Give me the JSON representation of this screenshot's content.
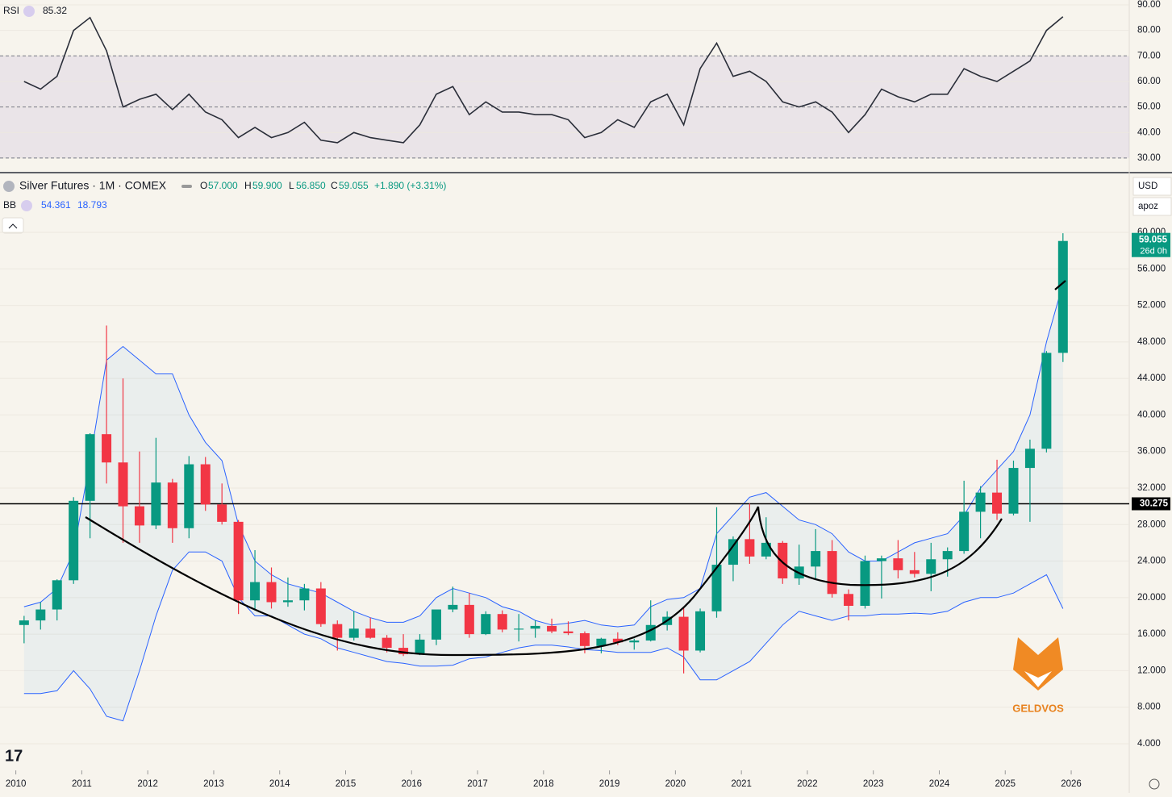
{
  "header": {
    "rsi_label": "RSI",
    "rsi_value": "85.32",
    "symbol": "Silver Futures · 1M · COMEX",
    "open_label": "O",
    "open": "57.000",
    "high_label": "H",
    "high": "59.900",
    "low_label": "L",
    "low": "56.850",
    "close_label": "C",
    "close": "59.055",
    "change": "+1.890 (+3.31%)",
    "bb_label": "BB",
    "bb_upper": "54.361",
    "bb_lower": "18.793",
    "currency": "USD",
    "scale": "apoz",
    "price_tag": "59.055",
    "countdown": "26d 0h",
    "watermark": "GELDVOS"
  },
  "chart_data": [
    {
      "type": "line",
      "title": "RSI",
      "color": "#2a2e39",
      "ylim": [
        24.6,
        91.9
      ],
      "yticks": [
        {
          "value": 30,
          "label": "30.00"
        },
        {
          "value": 40,
          "label": "40.00"
        },
        {
          "value": 50,
          "label": "50.00"
        },
        {
          "value": 60,
          "label": "60.00"
        },
        {
          "value": 70,
          "label": "70.00"
        },
        {
          "value": 80,
          "label": "80.00"
        },
        {
          "value": 90,
          "label": "90.00"
        }
      ],
      "levels": [
        30,
        50,
        70
      ],
      "xlim": [
        2009.76,
        2026.88
      ],
      "x": [
        2010.125,
        2010.375,
        2010.625,
        2010.875,
        2011.125,
        2011.375,
        2011.625,
        2011.875,
        2012.125,
        2012.375,
        2012.625,
        2012.875,
        2013.125,
        2013.375,
        2013.625,
        2013.875,
        2014.125,
        2014.375,
        2014.625,
        2014.875,
        2015.125,
        2015.375,
        2015.625,
        2015.875,
        2016.125,
        2016.375,
        2016.625,
        2016.875,
        2017.125,
        2017.375,
        2017.625,
        2017.875,
        2018.125,
        2018.375,
        2018.625,
        2018.875,
        2019.125,
        2019.375,
        2019.625,
        2019.875,
        2020.125,
        2020.375,
        2020.625,
        2020.875,
        2021.125,
        2021.375,
        2021.625,
        2021.875,
        2022.125,
        2022.375,
        2022.625,
        2022.875,
        2023.125,
        2023.375,
        2023.625,
        2023.875,
        2024.125,
        2024.375,
        2024.625,
        2024.875,
        2025.125,
        2025.375,
        2025.625,
        2025.875
      ],
      "values": [
        60,
        57,
        62,
        80,
        85,
        72,
        50,
        53,
        55,
        49,
        55,
        48,
        45,
        38,
        42,
        38,
        40,
        44,
        37,
        36,
        40,
        38,
        37,
        36,
        43,
        55,
        58,
        47,
        52,
        48,
        48,
        47,
        47,
        45,
        38,
        40,
        45,
        42,
        52,
        55,
        43,
        65,
        75,
        62,
        64,
        60,
        52,
        50,
        52,
        48,
        40,
        47,
        57,
        54,
        52,
        55,
        55,
        65,
        62,
        60,
        64,
        68,
        80,
        85.32
      ]
    },
    {
      "type": "candlestick",
      "title": "Silver Futures",
      "up_color": "#089981",
      "down_color": "#f23645",
      "band_color": "#2962ff",
      "ylim": [
        1.08,
        66.45
      ],
      "yticks": [
        {
          "value": 4,
          "label": "4.000"
        },
        {
          "value": 8,
          "label": "8.000"
        },
        {
          "value": 12,
          "label": "12.000"
        },
        {
          "value": 16,
          "label": "16.000"
        },
        {
          "value": 20,
          "label": "20.000"
        },
        {
          "value": 24,
          "label": "24.000"
        },
        {
          "value": 28,
          "label": "28.000"
        },
        {
          "value": 32,
          "label": "32.000"
        },
        {
          "value": 36,
          "label": "36.000"
        },
        {
          "value": 40,
          "label": "40.000"
        },
        {
          "value": 44,
          "label": "44.000"
        },
        {
          "value": 48,
          "label": "48.000"
        },
        {
          "value": 52,
          "label": "52.000"
        },
        {
          "value": 56,
          "label": "56.000"
        },
        {
          "value": 60,
          "label": "60.000"
        }
      ],
      "xlim": [
        2009.76,
        2026.88
      ],
      "xticks": [
        2010,
        2011,
        2012,
        2013,
        2014,
        2015,
        2016,
        2017,
        2018,
        2019,
        2020,
        2021,
        2022,
        2023,
        2024,
        2025,
        2026
      ],
      "hline": {
        "value": 30.275,
        "label": "30.275"
      },
      "x": [
        2010.125,
        2010.375,
        2010.625,
        2010.875,
        2011.125,
        2011.375,
        2011.625,
        2011.875,
        2012.125,
        2012.375,
        2012.625,
        2012.875,
        2013.125,
        2013.375,
        2013.625,
        2013.875,
        2014.125,
        2014.375,
        2014.625,
        2014.875,
        2015.125,
        2015.375,
        2015.625,
        2015.875,
        2016.125,
        2016.375,
        2016.625,
        2016.875,
        2017.125,
        2017.375,
        2017.625,
        2017.875,
        2018.125,
        2018.375,
        2018.625,
        2018.875,
        2019.125,
        2019.375,
        2019.625,
        2019.875,
        2020.125,
        2020.375,
        2020.625,
        2020.875,
        2021.125,
        2021.375,
        2021.625,
        2021.875,
        2022.125,
        2022.375,
        2022.625,
        2022.875,
        2023.125,
        2023.375,
        2023.625,
        2023.875,
        2024.125,
        2024.375,
        2024.625,
        2024.875,
        2025.125,
        2025.375,
        2025.625,
        2025.875
      ],
      "open": [
        17,
        17.5,
        18.7,
        21.9,
        30.6,
        37.9,
        34.8,
        30,
        27.9,
        32.6,
        27.6,
        34.6,
        30.2,
        28.3,
        19.7,
        21.7,
        19.5,
        19.7,
        21,
        17.1,
        15.6,
        16.6,
        15.6,
        14.5,
        13.8,
        15.4,
        18.7,
        19.2,
        16,
        18.2,
        16.5,
        16.6,
        16.9,
        16.3,
        16.1,
        14.7,
        15.5,
        15.1,
        15.3,
        17,
        17.9,
        14.2,
        18.5,
        23.6,
        26.4,
        24.5,
        26,
        22.1,
        23.4,
        25.1,
        20.4,
        19.1,
        24,
        24.3,
        23,
        22.6,
        24.2,
        25.1,
        29.4,
        31.5,
        29.2,
        34.2,
        36.3,
        46.8
      ],
      "high": [
        18,
        19.5,
        22,
        31,
        38,
        49.8,
        44,
        36,
        37.5,
        33,
        35.5,
        35.4,
        32.5,
        28.5,
        25.2,
        23.3,
        22.2,
        21.5,
        21.7,
        17.5,
        18.5,
        17.8,
        15.9,
        16,
        16,
        18.5,
        21.2,
        20.5,
        18.5,
        18.6,
        18.2,
        17.5,
        17.7,
        17.4,
        16.3,
        15.6,
        16.2,
        15.5,
        19.7,
        18.5,
        19,
        18.8,
        29.9,
        26.7,
        30.3,
        28.8,
        26.2,
        25.8,
        27.5,
        26.3,
        20.9,
        24.6,
        24.6,
        26.3,
        25,
        26,
        25.5,
        32.8,
        32.2,
        35.1,
        35,
        37.3,
        47,
        59.9
      ],
      "low": [
        15,
        16.5,
        17.5,
        21.5,
        26.5,
        32.5,
        26,
        26,
        27.5,
        26,
        26.5,
        29.5,
        28,
        18.2,
        18.6,
        18.8,
        19,
        18.6,
        16.8,
        14.2,
        15.3,
        15.5,
        14,
        13.6,
        13.7,
        14.8,
        18.4,
        15.6,
        15.9,
        16.2,
        15.2,
        15.6,
        16.1,
        15.9,
        13.9,
        13.9,
        14.8,
        14.3,
        15.2,
        16.4,
        11.7,
        14,
        17.8,
        21.8,
        23.7,
        24.2,
        21.5,
        21.4,
        22,
        20,
        17.5,
        18.8,
        19.9,
        22.1,
        22.2,
        20.7,
        22.3,
        24.8,
        26.5,
        28.5,
        29,
        28.3,
        35.9,
        45.8
      ],
      "close": [
        17.5,
        18.7,
        21.9,
        30.6,
        37.9,
        34.8,
        30,
        27.9,
        32.6,
        27.6,
        34.6,
        30.2,
        28.3,
        19.7,
        21.7,
        19.5,
        19.7,
        21,
        17.1,
        15.6,
        16.6,
        15.6,
        14.5,
        13.8,
        15.4,
        18.7,
        19.2,
        16,
        18.2,
        16.5,
        16.6,
        16.9,
        16.3,
        16.1,
        14.7,
        15.5,
        15.1,
        15.3,
        17,
        17.9,
        14.2,
        18.5,
        23.6,
        26.4,
        24.5,
        26,
        22.1,
        23.4,
        25.1,
        20.4,
        19.1,
        24,
        24.3,
        23,
        22.6,
        24.2,
        25.1,
        29.4,
        31.5,
        29.2,
        34.2,
        36.3,
        46.8,
        59.055
      ],
      "series": [
        {
          "name": "upper",
          "values": [
            19,
            19.5,
            21,
            25,
            35,
            46,
            47.5,
            46,
            44.5,
            44.5,
            40,
            37,
            35,
            28,
            24,
            22.5,
            21.5,
            21,
            20.5,
            19.5,
            18.5,
            17.8,
            17.3,
            17.3,
            18,
            20,
            21,
            20.5,
            20,
            19,
            18.5,
            17.5,
            17,
            17.2,
            17.5,
            17,
            16.8,
            17,
            19,
            19.8,
            20,
            21,
            27,
            29,
            31,
            31.5,
            30,
            28.5,
            28,
            27,
            25,
            24,
            24,
            25,
            26,
            26.5,
            27,
            29,
            32,
            34,
            36,
            40,
            48,
            54.361
          ]
        },
        {
          "name": "lower",
          "values": [
            9.5,
            9.5,
            9.8,
            12,
            10,
            7,
            6.5,
            12,
            18,
            23,
            25,
            25,
            24,
            20,
            18,
            18,
            17,
            16,
            15.5,
            14.5,
            14,
            13.5,
            13,
            12.8,
            12.5,
            12.5,
            12.6,
            13.3,
            13.5,
            14,
            14.5,
            14.8,
            14.8,
            14.6,
            14.3,
            14.2,
            14,
            14,
            14,
            14.5,
            13.5,
            11,
            11,
            12,
            13,
            15,
            17,
            18.5,
            18,
            17.5,
            18,
            18,
            18.2,
            18.2,
            18.3,
            18.2,
            18.5,
            19.5,
            20,
            20,
            20.5,
            21.5,
            22.5,
            18.793
          ]
        }
      ]
    }
  ]
}
